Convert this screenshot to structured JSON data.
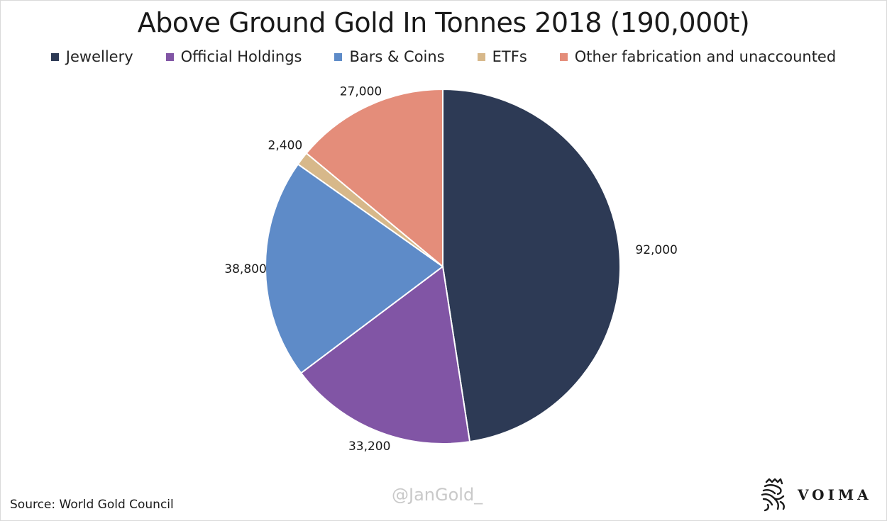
{
  "chart_data": {
    "type": "pie",
    "title": "Above Ground Gold In Tonnes 2018 (190,000t)",
    "legend_position": "top",
    "slices": [
      {
        "name": "Jewellery",
        "value": 92000,
        "label": "92,000",
        "color": "#2d3a55"
      },
      {
        "name": "Official Holdings",
        "value": 33200,
        "label": "33,200",
        "color": "#8155a5"
      },
      {
        "name": "Bars & Coins",
        "value": 38800,
        "label": "38,800",
        "color": "#5e8bc8"
      },
      {
        "name": "ETFs",
        "value": 2400,
        "label": "2,400",
        "color": "#d7b88a"
      },
      {
        "name": "Other fabrication and unaccounted",
        "value": 27000,
        "label": "27,000",
        "color": "#e48d7a"
      }
    ]
  },
  "footer": {
    "source": "Source: World Gold Council",
    "watermark": "@JanGold_",
    "brand_name": "VOIMA"
  }
}
